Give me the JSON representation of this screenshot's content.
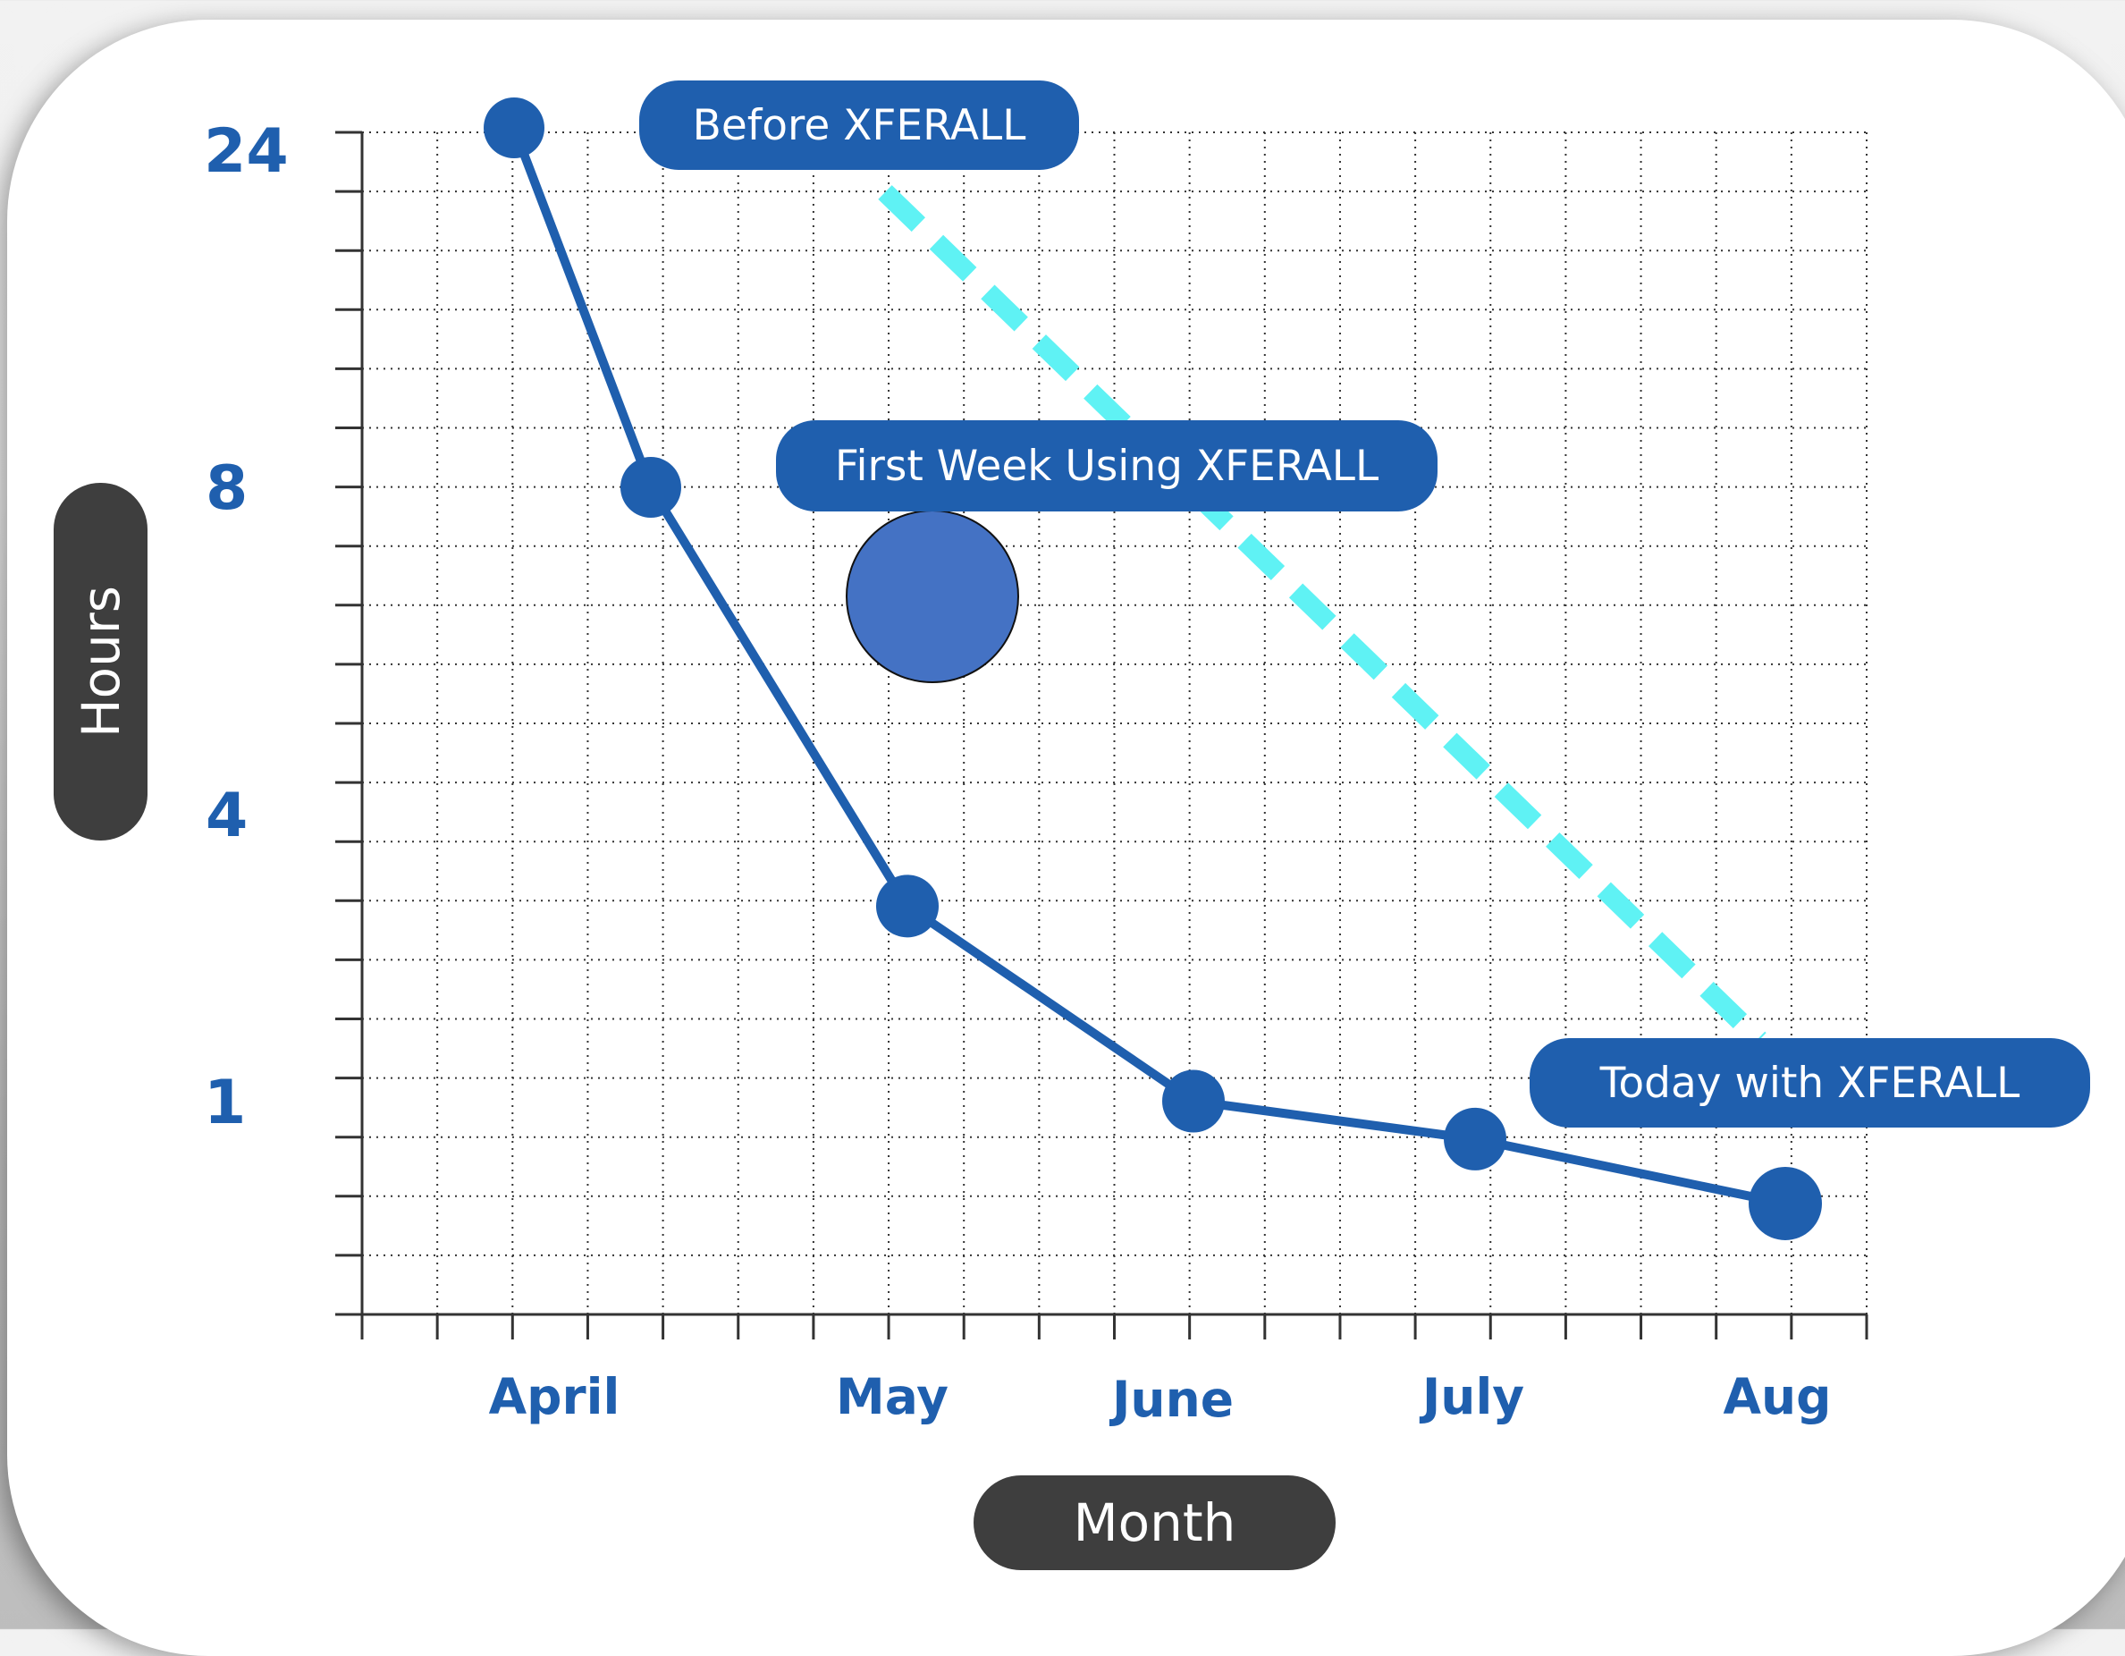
{
  "chart_data": {
    "type": "line",
    "categories": [
      "April",
      "May",
      "June",
      "July",
      "Aug"
    ],
    "ytick_labels": [
      "24",
      "8",
      "4",
      "1"
    ],
    "series": [
      {
        "x": [
          "April",
          "mid-April",
          "May",
          "June",
          "July",
          "Aug"
        ],
        "y": [
          24,
          8,
          2.5,
          0.9,
          0.75,
          0.55
        ]
      }
    ],
    "trend_line": {
      "style": "dashed",
      "color": "#5ff2f4"
    },
    "annotations": [
      "Before XFERALL",
      "First Week Using XFERALL",
      "Today with XFERALL"
    ],
    "xlabel": "Month",
    "ylabel": "Hours",
    "grid": true,
    "y_scale": "log"
  },
  "colors": {
    "series": "#1f5fae",
    "trend": "#5ff2f4",
    "marker_large": "#4472c4",
    "pill_dark": "#3e3e3e"
  }
}
